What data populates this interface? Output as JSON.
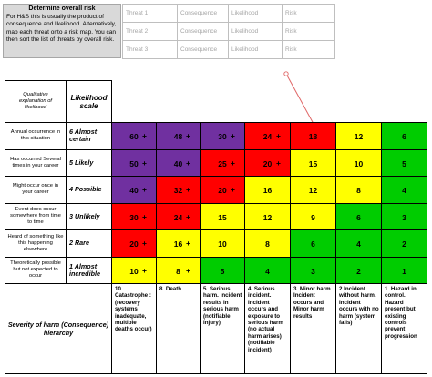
{
  "info_box": {
    "title": "Determine overall risk",
    "text": "For H&S this is usually the product of consequence and likelihood. Alternatively, map each threat onto a risk map. You can then sort the list of threats by overall risk."
  },
  "threat_table": {
    "rows": [
      [
        "Threat 1",
        "Consequence",
        "Likelihood",
        "Risk"
      ],
      [
        "Threat 2",
        "Consequence",
        "Likelihood",
        "Risk"
      ],
      [
        "Threat 3",
        "Consequence",
        "Likelihood",
        "Risk"
      ]
    ]
  },
  "matrix": {
    "header": {
      "qualitative": "Qualitative explanation of likelihood",
      "likelihood_scale": "Likelihood scale"
    },
    "rows": [
      {
        "desc": "Annual occurrence in this situation",
        "level": "6 Almost certain",
        "cells": [
          {
            "v": "60",
            "plus": true,
            "color": "purple"
          },
          {
            "v": "48",
            "plus": true,
            "color": "purple"
          },
          {
            "v": "30",
            "plus": true,
            "color": "purple"
          },
          {
            "v": "24",
            "plus": true,
            "color": "red"
          },
          {
            "v": "18",
            "plus": false,
            "color": "red"
          },
          {
            "v": "12",
            "plus": false,
            "color": "yellow"
          },
          {
            "v": "6",
            "plus": false,
            "color": "green"
          }
        ]
      },
      {
        "desc": "Has occurred Several times in your career",
        "level": "5 Likely",
        "cells": [
          {
            "v": "50",
            "plus": true,
            "color": "purple"
          },
          {
            "v": "40",
            "plus": true,
            "color": "purple"
          },
          {
            "v": "25",
            "plus": true,
            "color": "red"
          },
          {
            "v": "20",
            "plus": true,
            "color": "red"
          },
          {
            "v": "15",
            "plus": false,
            "color": "yellow"
          },
          {
            "v": "10",
            "plus": false,
            "color": "yellow"
          },
          {
            "v": "5",
            "plus": false,
            "color": "green"
          }
        ]
      },
      {
        "desc": "Might occur once in your career",
        "level": "4 Possible",
        "cells": [
          {
            "v": "40",
            "plus": true,
            "color": "purple"
          },
          {
            "v": "32",
            "plus": true,
            "color": "red"
          },
          {
            "v": "20",
            "plus": true,
            "color": "red"
          },
          {
            "v": "16",
            "plus": false,
            "color": "yellow"
          },
          {
            "v": "12",
            "plus": false,
            "color": "yellow"
          },
          {
            "v": "8",
            "plus": false,
            "color": "yellow"
          },
          {
            "v": "4",
            "plus": false,
            "color": "green"
          }
        ]
      },
      {
        "desc": "Event does occur somewhere from time to time",
        "level": "3 Unlikely",
        "cells": [
          {
            "v": "30",
            "plus": true,
            "color": "red"
          },
          {
            "v": "24",
            "plus": true,
            "color": "red"
          },
          {
            "v": "15",
            "plus": false,
            "color": "yellow"
          },
          {
            "v": "12",
            "plus": false,
            "color": "yellow"
          },
          {
            "v": "9",
            "plus": false,
            "color": "yellow"
          },
          {
            "v": "6",
            "plus": false,
            "color": "green"
          },
          {
            "v": "3",
            "plus": false,
            "color": "green"
          }
        ]
      },
      {
        "desc": "Heard of something like this happening elsewhere",
        "level": "2 Rare",
        "cells": [
          {
            "v": "20",
            "plus": true,
            "color": "red"
          },
          {
            "v": "16",
            "plus": true,
            "color": "yellow"
          },
          {
            "v": "10",
            "plus": false,
            "color": "yellow"
          },
          {
            "v": "8",
            "plus": false,
            "color": "yellow"
          },
          {
            "v": "6",
            "plus": false,
            "color": "green"
          },
          {
            "v": "4",
            "plus": false,
            "color": "green"
          },
          {
            "v": "2",
            "plus": false,
            "color": "green"
          }
        ]
      },
      {
        "desc": "Theoretically possible but not expected to occur",
        "level": "1 Almost incredible",
        "cells": [
          {
            "v": "10",
            "plus": true,
            "color": "yellow"
          },
          {
            "v": "8",
            "plus": true,
            "color": "yellow"
          },
          {
            "v": "5",
            "plus": false,
            "color": "green"
          },
          {
            "v": "4",
            "plus": false,
            "color": "green"
          },
          {
            "v": "3",
            "plus": false,
            "color": "green"
          },
          {
            "v": "2",
            "plus": false,
            "color": "green"
          },
          {
            "v": "1",
            "plus": false,
            "color": "green"
          }
        ]
      }
    ],
    "plus_sign": "+",
    "severity_title": "Severity of harm (Consequence) hierarchy",
    "severity": [
      {
        "label": "10. Catastrophe",
        "desc": ": (recovery systems inadequate, multiple deaths occur)"
      },
      {
        "label": "8. Death",
        "desc": ""
      },
      {
        "label": "5. Serious harm.",
        "desc": "Incident results in serious harm (notifiable injury)"
      },
      {
        "label": "4. Serious incident.",
        "desc": "Incident occurs and exposure to serious harm (no actual harm arises) (notifiable incident)"
      },
      {
        "label": "3. Minor harm.",
        "desc": "Incident occurs and Minor harm results"
      },
      {
        "label": "2.Incident without harm.",
        "desc": "Incident occurs with no harm (system fails)"
      },
      {
        "label": "1. Hazard in control.",
        "desc": "Hazard present but existing controls prevent progression"
      }
    ],
    "colors": {
      "purple": "#7030a0",
      "red": "#ff0000",
      "yellow": "#ffff00",
      "green": "#00cc00"
    }
  }
}
